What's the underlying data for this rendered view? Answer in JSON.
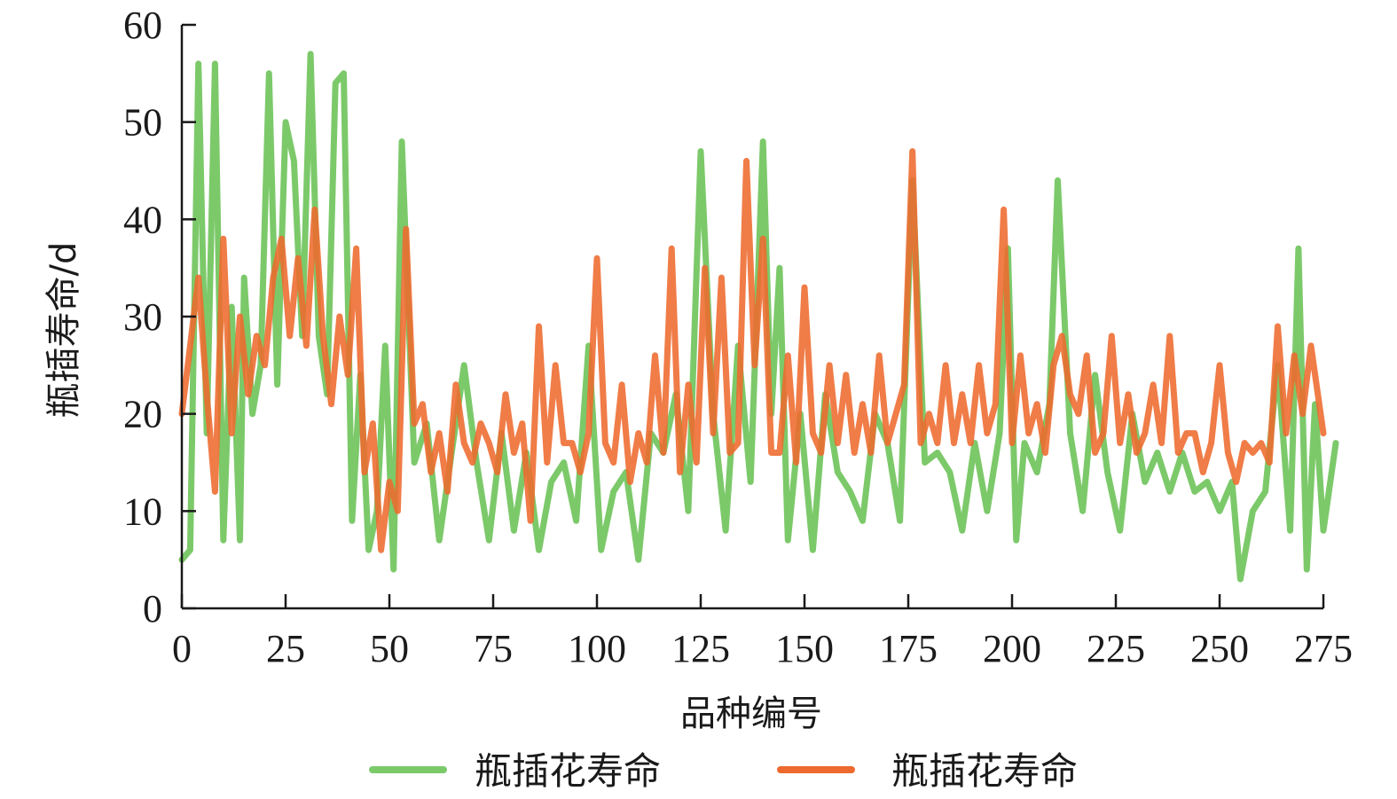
{
  "chart_data": {
    "type": "line",
    "title": "",
    "xlabel": "品种编号",
    "ylabel": "瓶插寿命/d",
    "xlim": [
      0,
      275
    ],
    "ylim": [
      0,
      60
    ],
    "xticks": [
      0,
      25,
      50,
      75,
      100,
      125,
      150,
      175,
      200,
      225,
      250,
      275
    ],
    "yticks": [
      0,
      10,
      20,
      30,
      40,
      50,
      60
    ],
    "grid": false,
    "legend_position": "bottom",
    "series": [
      {
        "name": "瓶插花寿命",
        "color": "#7cc96a",
        "points": [
          [
            0,
            5
          ],
          [
            2,
            6
          ],
          [
            4,
            56
          ],
          [
            6,
            18
          ],
          [
            8,
            56
          ],
          [
            10,
            7
          ],
          [
            12,
            31
          ],
          [
            14,
            7
          ],
          [
            15,
            34
          ],
          [
            17,
            20
          ],
          [
            19,
            25
          ],
          [
            21,
            55
          ],
          [
            23,
            23
          ],
          [
            25,
            50
          ],
          [
            27,
            46
          ],
          [
            29,
            28
          ],
          [
            31,
            57
          ],
          [
            33,
            28
          ],
          [
            35,
            22
          ],
          [
            37,
            54
          ],
          [
            39,
            55
          ],
          [
            41,
            9
          ],
          [
            43,
            24
          ],
          [
            45,
            6
          ],
          [
            47,
            10
          ],
          [
            49,
            27
          ],
          [
            51,
            4
          ],
          [
            53,
            48
          ],
          [
            56,
            15
          ],
          [
            59,
            19
          ],
          [
            62,
            7
          ],
          [
            65,
            16
          ],
          [
            68,
            25
          ],
          [
            71,
            15
          ],
          [
            74,
            7
          ],
          [
            77,
            18
          ],
          [
            80,
            8
          ],
          [
            83,
            16
          ],
          [
            86,
            6
          ],
          [
            89,
            13
          ],
          [
            92,
            15
          ],
          [
            95,
            9
          ],
          [
            98,
            27
          ],
          [
            101,
            6
          ],
          [
            104,
            12
          ],
          [
            107,
            14
          ],
          [
            110,
            5
          ],
          [
            113,
            18
          ],
          [
            116,
            16
          ],
          [
            119,
            22
          ],
          [
            122,
            10
          ],
          [
            125,
            47
          ],
          [
            128,
            20
          ],
          [
            131,
            8
          ],
          [
            134,
            27
          ],
          [
            137,
            13
          ],
          [
            140,
            48
          ],
          [
            142,
            20
          ],
          [
            144,
            35
          ],
          [
            146,
            7
          ],
          [
            149,
            20
          ],
          [
            152,
            6
          ],
          [
            155,
            22
          ],
          [
            158,
            14
          ],
          [
            161,
            12
          ],
          [
            164,
            9
          ],
          [
            167,
            20
          ],
          [
            170,
            17
          ],
          [
            173,
            9
          ],
          [
            176,
            44
          ],
          [
            179,
            15
          ],
          [
            182,
            16
          ],
          [
            185,
            14
          ],
          [
            188,
            8
          ],
          [
            191,
            17
          ],
          [
            194,
            10
          ],
          [
            197,
            18
          ],
          [
            199,
            37
          ],
          [
            201,
            7
          ],
          [
            203,
            17
          ],
          [
            206,
            14
          ],
          [
            209,
            21
          ],
          [
            211,
            44
          ],
          [
            214,
            18
          ],
          [
            217,
            10
          ],
          [
            220,
            24
          ],
          [
            223,
            14
          ],
          [
            226,
            8
          ],
          [
            229,
            20
          ],
          [
            232,
            13
          ],
          [
            235,
            16
          ],
          [
            238,
            12
          ],
          [
            241,
            16
          ],
          [
            244,
            12
          ],
          [
            247,
            13
          ],
          [
            250,
            10
          ],
          [
            253,
            13
          ],
          [
            255,
            3
          ],
          [
            258,
            10
          ],
          [
            261,
            12
          ],
          [
            264,
            25
          ],
          [
            267,
            8
          ],
          [
            269,
            37
          ],
          [
            271,
            4
          ],
          [
            273,
            21
          ],
          [
            275,
            8
          ],
          [
            278,
            17
          ]
        ]
      },
      {
        "name": "瓶插花寿命",
        "color": "#ee6a2e",
        "points": [
          [
            0,
            20
          ],
          [
            2,
            27
          ],
          [
            4,
            34
          ],
          [
            6,
            22
          ],
          [
            8,
            12
          ],
          [
            10,
            38
          ],
          [
            12,
            18
          ],
          [
            14,
            30
          ],
          [
            16,
            22
          ],
          [
            18,
            28
          ],
          [
            20,
            25
          ],
          [
            22,
            34
          ],
          [
            24,
            38
          ],
          [
            26,
            28
          ],
          [
            28,
            36
          ],
          [
            30,
            27
          ],
          [
            32,
            41
          ],
          [
            34,
            28
          ],
          [
            36,
            21
          ],
          [
            38,
            30
          ],
          [
            40,
            24
          ],
          [
            42,
            37
          ],
          [
            44,
            14
          ],
          [
            46,
            19
          ],
          [
            48,
            6
          ],
          [
            50,
            13
          ],
          [
            52,
            10
          ],
          [
            54,
            39
          ],
          [
            56,
            19
          ],
          [
            58,
            21
          ],
          [
            60,
            14
          ],
          [
            62,
            18
          ],
          [
            64,
            12
          ],
          [
            66,
            23
          ],
          [
            68,
            17
          ],
          [
            70,
            15
          ],
          [
            72,
            19
          ],
          [
            74,
            17
          ],
          [
            76,
            14
          ],
          [
            78,
            22
          ],
          [
            80,
            16
          ],
          [
            82,
            19
          ],
          [
            84,
            9
          ],
          [
            86,
            29
          ],
          [
            88,
            15
          ],
          [
            90,
            25
          ],
          [
            92,
            17
          ],
          [
            94,
            17
          ],
          [
            96,
            14
          ],
          [
            98,
            18
          ],
          [
            100,
            36
          ],
          [
            102,
            17
          ],
          [
            104,
            15
          ],
          [
            106,
            23
          ],
          [
            108,
            13
          ],
          [
            110,
            18
          ],
          [
            112,
            15
          ],
          [
            114,
            26
          ],
          [
            116,
            16
          ],
          [
            118,
            37
          ],
          [
            120,
            14
          ],
          [
            122,
            23
          ],
          [
            124,
            15
          ],
          [
            126,
            35
          ],
          [
            128,
            18
          ],
          [
            130,
            34
          ],
          [
            132,
            16
          ],
          [
            134,
            17
          ],
          [
            136,
            46
          ],
          [
            138,
            25
          ],
          [
            140,
            38
          ],
          [
            142,
            16
          ],
          [
            144,
            16
          ],
          [
            146,
            26
          ],
          [
            148,
            15
          ],
          [
            150,
            33
          ],
          [
            152,
            18
          ],
          [
            154,
            16
          ],
          [
            156,
            25
          ],
          [
            158,
            17
          ],
          [
            160,
            24
          ],
          [
            162,
            16
          ],
          [
            164,
            21
          ],
          [
            166,
            16
          ],
          [
            168,
            26
          ],
          [
            170,
            17
          ],
          [
            172,
            20
          ],
          [
            174,
            23
          ],
          [
            176,
            47
          ],
          [
            178,
            17
          ],
          [
            180,
            20
          ],
          [
            182,
            17
          ],
          [
            184,
            25
          ],
          [
            186,
            17
          ],
          [
            188,
            22
          ],
          [
            190,
            17
          ],
          [
            192,
            25
          ],
          [
            194,
            18
          ],
          [
            196,
            21
          ],
          [
            198,
            41
          ],
          [
            200,
            17
          ],
          [
            202,
            26
          ],
          [
            204,
            18
          ],
          [
            206,
            21
          ],
          [
            208,
            16
          ],
          [
            210,
            25
          ],
          [
            212,
            28
          ],
          [
            214,
            22
          ],
          [
            216,
            20
          ],
          [
            218,
            26
          ],
          [
            220,
            16
          ],
          [
            222,
            18
          ],
          [
            224,
            28
          ],
          [
            226,
            17
          ],
          [
            228,
            22
          ],
          [
            230,
            16
          ],
          [
            232,
            18
          ],
          [
            234,
            23
          ],
          [
            236,
            17
          ],
          [
            238,
            28
          ],
          [
            240,
            16
          ],
          [
            242,
            18
          ],
          [
            244,
            18
          ],
          [
            246,
            14
          ],
          [
            248,
            17
          ],
          [
            250,
            25
          ],
          [
            252,
            16
          ],
          [
            254,
            13
          ],
          [
            256,
            17
          ],
          [
            258,
            16
          ],
          [
            260,
            17
          ],
          [
            262,
            15
          ],
          [
            264,
            29
          ],
          [
            266,
            18
          ],
          [
            268,
            26
          ],
          [
            270,
            20
          ],
          [
            272,
            27
          ],
          [
            275,
            18
          ]
        ]
      }
    ]
  }
}
